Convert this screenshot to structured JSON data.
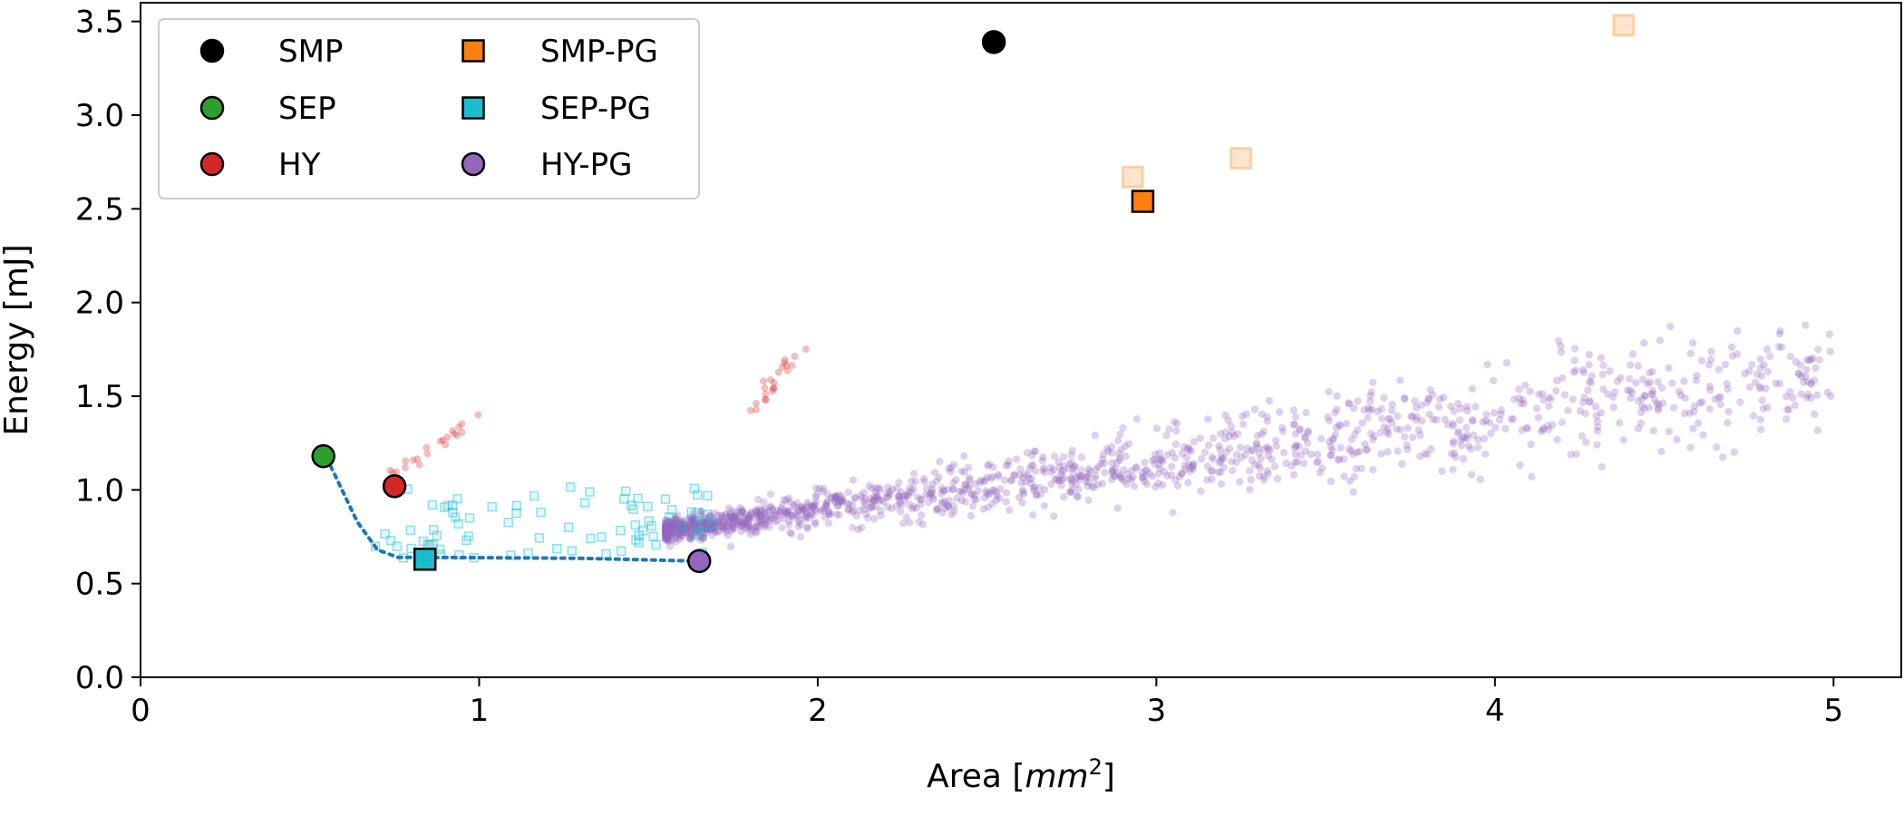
{
  "chart_data": {
    "type": "scatter",
    "title": "",
    "xlabel": "Area [",
    "xlabel_math": "mm",
    "xlabel_sup": "2",
    "xlabel_close": "]",
    "ylabel": "Energy [mJ]",
    "xlim": [
      0,
      5.2
    ],
    "ylim": [
      0,
      3.6
    ],
    "xticks": [
      "0",
      "1",
      "2",
      "3",
      "4",
      "5"
    ],
    "xtick_values": [
      0,
      1,
      2,
      3,
      4,
      5
    ],
    "yticks": [
      "0.0",
      "0.5",
      "1.0",
      "1.5",
      "2.0",
      "2.5",
      "3.0",
      "3.5"
    ],
    "ytick_values": [
      0,
      0.5,
      1.0,
      1.5,
      2.0,
      2.5,
      3.0,
      3.5
    ],
    "legend_position": "top-left",
    "colors": {
      "SMP": "#000000",
      "SEP": "#2ca02c",
      "HY": "#d62728",
      "SMP-PG": "#ff7f0e",
      "SEP-PG": "#17becf",
      "HY-PG": "#9467bd",
      "pareto": "#1f77b4"
    },
    "series": [
      {
        "name": "SMP",
        "marker": "circle",
        "points": [
          [
            2.52,
            3.39
          ]
        ]
      },
      {
        "name": "SEP",
        "marker": "circle",
        "points": [
          [
            0.54,
            1.18
          ]
        ]
      },
      {
        "name": "HY",
        "marker": "circle",
        "points": [
          [
            0.75,
            1.02
          ]
        ]
      },
      {
        "name": "SMP-PG",
        "marker": "square",
        "points": [
          [
            2.96,
            2.54
          ]
        ]
      },
      {
        "name": "SEP-PG",
        "marker": "square",
        "points": [
          [
            0.84,
            0.63
          ]
        ]
      },
      {
        "name": "HY-PG",
        "marker": "circle",
        "points": [
          [
            1.65,
            0.62
          ]
        ]
      }
    ],
    "background_points": {
      "SMP-PG": [
        [
          2.93,
          2.67
        ],
        [
          3.25,
          2.77
        ],
        [
          4.38,
          3.48
        ]
      ],
      "HY_clusters": [
        {
          "x_range": [
            0.72,
            1.02
          ],
          "y_range": [
            1.04,
            1.42
          ]
        },
        {
          "x_range": [
            1.78,
            1.96
          ],
          "y_range": [
            1.38,
            1.77
          ]
        }
      ],
      "SEP-PG_region": {
        "x_range": [
          0.68,
          1.7
        ],
        "y_range": [
          0.63,
          1.07
        ]
      },
      "HY-PG_cloud": {
        "x_range": [
          1.55,
          5.0
        ],
        "y_trend_start": 0.78,
        "y_trend_end": 1.65
      }
    },
    "pareto_front": [
      [
        0.55,
        1.17
      ],
      [
        0.64,
        0.83
      ],
      [
        0.7,
        0.68
      ],
      [
        0.76,
        0.64
      ],
      [
        0.84,
        0.64
      ],
      [
        1.3,
        0.635
      ],
      [
        1.65,
        0.62
      ]
    ],
    "legend": [
      {
        "label": "SMP",
        "marker": "circle",
        "series": "SMP"
      },
      {
        "label": "SEP",
        "marker": "circle",
        "series": "SEP"
      },
      {
        "label": "HY",
        "marker": "circle",
        "series": "HY"
      },
      {
        "label": "SMP-PG",
        "marker": "square",
        "series": "SMP-PG"
      },
      {
        "label": "SEP-PG",
        "marker": "square",
        "series": "SEP-PG"
      },
      {
        "label": "HY-PG",
        "marker": "circle",
        "series": "HY-PG"
      }
    ]
  }
}
